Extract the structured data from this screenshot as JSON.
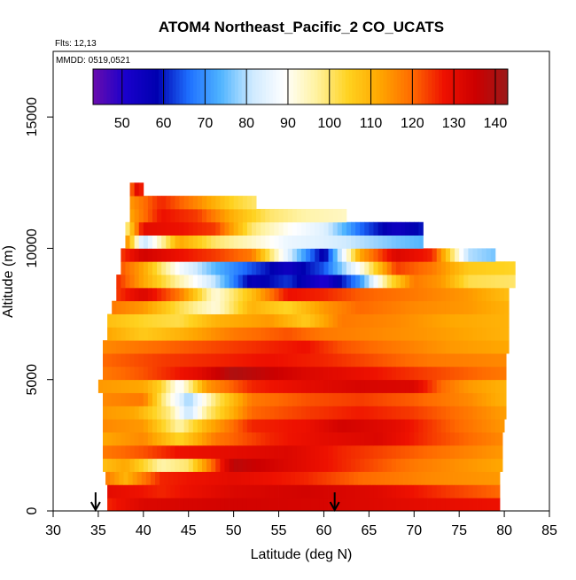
{
  "chart_data": {
    "type": "heatmap",
    "title": "ATOM4 Northeast_Pacific_2 CO_UCATS",
    "flights_note": "Flts: 12,13",
    "date_note": "MMDD: 0519,0521",
    "xlabel": "Latitude (deg N)",
    "ylabel": "Altitude (m)",
    "xlim": [
      30,
      85
    ],
    "ylim": [
      0,
      17500
    ],
    "x_ticks": [
      30,
      35,
      40,
      45,
      50,
      55,
      60,
      65,
      70,
      75,
      80,
      85
    ],
    "y_ticks": [
      0,
      5000,
      10000,
      15000
    ],
    "grid": false,
    "colorbar": {
      "placement": "top",
      "range": [
        43,
        143
      ],
      "ticks": [
        50,
        60,
        70,
        80,
        90,
        100,
        110,
        120,
        130,
        140
      ],
      "colors": [
        "#6a0dad",
        "#1a00cc",
        "#0000b0",
        "#1e6fff",
        "#4fb4ff",
        "#cfeaff",
        "#ffffff",
        "#fff2a0",
        "#ffd21f",
        "#ffa600",
        "#ff6a00",
        "#ee1100",
        "#cc0000",
        "#9a1a1a"
      ]
    },
    "markers": [
      {
        "label": "down-arrow",
        "latitude": 34.7
      },
      {
        "label": "down-arrow",
        "latitude": 61.2
      }
    ],
    "cell_height": 500,
    "rows": [
      {
        "alt": 250,
        "lat_min": 36.0,
        "lat_max": 79.5,
        "profile": [
          [
            36,
            126
          ],
          [
            40,
            132
          ],
          [
            50,
            134
          ],
          [
            60,
            133
          ],
          [
            70,
            130
          ],
          [
            79.5,
            128
          ]
        ]
      },
      {
        "alt": 750,
        "lat_min": 36.0,
        "lat_max": 79.5,
        "profile": [
          [
            36,
            130
          ],
          [
            42,
            126
          ],
          [
            50,
            132
          ],
          [
            58,
            134
          ],
          [
            66,
            131
          ],
          [
            74,
            124
          ],
          [
            79.5,
            120
          ]
        ]
      },
      {
        "alt": 1250,
        "lat_min": 35.8,
        "lat_max": 79.5,
        "profile": [
          [
            35.8,
            118
          ],
          [
            38,
            110
          ],
          [
            42,
            126
          ],
          [
            50,
            130
          ],
          [
            58,
            126
          ],
          [
            64,
            120
          ],
          [
            72,
            116
          ],
          [
            79.5,
            114
          ]
        ]
      },
      {
        "alt": 1750,
        "lat_min": 35.5,
        "lat_max": 79.8,
        "profile": [
          [
            35.5,
            108
          ],
          [
            38,
            112
          ],
          [
            42,
            96
          ],
          [
            45,
            100
          ],
          [
            50,
            138
          ],
          [
            56,
            132
          ],
          [
            62,
            126
          ],
          [
            70,
            118
          ],
          [
            79.8,
            112
          ]
        ]
      },
      {
        "alt": 2250,
        "lat_min": 35.5,
        "lat_max": 79.8,
        "profile": [
          [
            35.5,
            118
          ],
          [
            40,
            122
          ],
          [
            44,
            128
          ],
          [
            50,
            130
          ],
          [
            56,
            132
          ],
          [
            62,
            126
          ],
          [
            70,
            121
          ],
          [
            79.8,
            114
          ]
        ]
      },
      {
        "alt": 2750,
        "lat_min": 35.5,
        "lat_max": 79.8,
        "profile": [
          [
            35.5,
            112
          ],
          [
            40,
            116
          ],
          [
            44,
            104
          ],
          [
            48,
            118
          ],
          [
            54,
            126
          ],
          [
            60,
            130
          ],
          [
            66,
            132
          ],
          [
            72,
            124
          ],
          [
            79.8,
            116
          ]
        ]
      },
      {
        "alt": 3250,
        "lat_min": 35.5,
        "lat_max": 80.0,
        "profile": [
          [
            35.5,
            116
          ],
          [
            40,
            114
          ],
          [
            44,
            96
          ],
          [
            47,
            110
          ],
          [
            52,
            126
          ],
          [
            58,
            128
          ],
          [
            62,
            134
          ],
          [
            68,
            130
          ],
          [
            74,
            121
          ],
          [
            80,
            114
          ]
        ]
      },
      {
        "alt": 3750,
        "lat_min": 35.5,
        "lat_max": 80.2,
        "profile": [
          [
            35.5,
            114
          ],
          [
            39,
            112
          ],
          [
            43,
            98
          ],
          [
            45,
            80
          ],
          [
            47,
            98
          ],
          [
            52,
            120
          ],
          [
            58,
            124
          ],
          [
            64,
            127
          ],
          [
            70,
            124
          ],
          [
            76,
            118
          ],
          [
            80.2,
            113
          ]
        ]
      },
      {
        "alt": 4250,
        "lat_min": 35.5,
        "lat_max": 80.2,
        "profile": [
          [
            35.5,
            116
          ],
          [
            40,
            118
          ],
          [
            43,
            92
          ],
          [
            45,
            78
          ],
          [
            48,
            100
          ],
          [
            52,
            118
          ],
          [
            58,
            122
          ],
          [
            64,
            124
          ],
          [
            70,
            121
          ],
          [
            76,
            116
          ],
          [
            80.2,
            110
          ]
        ]
      },
      {
        "alt": 4750,
        "lat_min": 35.0,
        "lat_max": 80.2,
        "profile": [
          [
            35,
            114
          ],
          [
            40,
            112
          ],
          [
            42,
            104
          ],
          [
            44,
            88
          ],
          [
            47,
            114
          ],
          [
            52,
            126
          ],
          [
            58,
            130
          ],
          [
            64,
            133
          ],
          [
            70,
            132
          ],
          [
            73,
            120
          ],
          [
            76,
            114
          ],
          [
            80.2,
            110
          ]
        ]
      },
      {
        "alt": 5250,
        "lat_min": 35.5,
        "lat_max": 80.2,
        "profile": [
          [
            35.5,
            118
          ],
          [
            40,
            122
          ],
          [
            46,
            130
          ],
          [
            50,
            140
          ],
          [
            54,
            136
          ],
          [
            58,
            132
          ],
          [
            62,
            130
          ],
          [
            68,
            126
          ],
          [
            74,
            122
          ],
          [
            80.2,
            118
          ]
        ]
      },
      {
        "alt": 5750,
        "lat_min": 35.5,
        "lat_max": 80.2,
        "profile": [
          [
            35.5,
            120
          ],
          [
            42,
            124
          ],
          [
            48,
            126
          ],
          [
            54,
            128
          ],
          [
            60,
            126
          ],
          [
            66,
            122
          ],
          [
            72,
            118
          ],
          [
            80.2,
            116
          ]
        ]
      },
      {
        "alt": 6250,
        "lat_min": 35.5,
        "lat_max": 80.5,
        "profile": [
          [
            35.5,
            116
          ],
          [
            42,
            120
          ],
          [
            50,
            124
          ],
          [
            58,
            128
          ],
          [
            62,
            122
          ],
          [
            68,
            118
          ],
          [
            74,
            114
          ],
          [
            80.5,
            112
          ]
        ]
      },
      {
        "alt": 6750,
        "lat_min": 36.0,
        "lat_max": 80.5,
        "profile": [
          [
            36,
            112
          ],
          [
            40,
            106
          ],
          [
            44,
            110
          ],
          [
            50,
            118
          ],
          [
            56,
            122
          ],
          [
            60,
            118
          ],
          [
            66,
            116
          ],
          [
            72,
            114
          ],
          [
            80.5,
            110
          ]
        ]
      },
      {
        "alt": 7250,
        "lat_min": 36.0,
        "lat_max": 80.5,
        "profile": [
          [
            36,
            108
          ],
          [
            40,
            104
          ],
          [
            44,
            102
          ],
          [
            48,
            110
          ],
          [
            54,
            114
          ],
          [
            58,
            106
          ],
          [
            62,
            118
          ],
          [
            68,
            116
          ],
          [
            74,
            112
          ],
          [
            80.5,
            110
          ]
        ]
      },
      {
        "alt": 7750,
        "lat_min": 36.5,
        "lat_max": 80.5,
        "profile": [
          [
            36.5,
            118
          ],
          [
            40,
            114
          ],
          [
            44,
            102
          ],
          [
            48,
            92
          ],
          [
            52,
            110
          ],
          [
            56,
            104
          ],
          [
            60,
            114
          ],
          [
            64,
            120
          ],
          [
            70,
            116
          ],
          [
            76,
            114
          ],
          [
            80.5,
            110
          ]
        ]
      },
      {
        "alt": 8250,
        "lat_min": 37.0,
        "lat_max": 80.5,
        "profile": [
          [
            37,
            124
          ],
          [
            40,
            132
          ],
          [
            44,
            118
          ],
          [
            48,
            92
          ],
          [
            52,
            108
          ],
          [
            56,
            128
          ],
          [
            60,
            126
          ],
          [
            64,
            121
          ],
          [
            70,
            118
          ],
          [
            76,
            114
          ],
          [
            80.5,
            108
          ]
        ]
      },
      {
        "alt": 8750,
        "lat_min": 37.0,
        "lat_max": 81.2,
        "profile": [
          [
            37,
            126
          ],
          [
            40,
            112
          ],
          [
            44,
            96
          ],
          [
            48,
            80
          ],
          [
            52,
            56
          ],
          [
            56,
            62
          ],
          [
            60,
            50
          ],
          [
            64,
            70
          ],
          [
            67,
            100
          ],
          [
            70,
            118
          ],
          [
            73,
            114
          ],
          [
            76,
            102
          ],
          [
            81.2,
            100
          ]
        ]
      },
      {
        "alt": 9250,
        "lat_min": 37.5,
        "lat_max": 81.2,
        "profile": [
          [
            37.5,
            122
          ],
          [
            40,
            112
          ],
          [
            44,
            88
          ],
          [
            48,
            74
          ],
          [
            52,
            64
          ],
          [
            56,
            54
          ],
          [
            60,
            64
          ],
          [
            64,
            90
          ],
          [
            68,
            124
          ],
          [
            72,
            118
          ],
          [
            76,
            106
          ],
          [
            81.2,
            104
          ]
        ]
      },
      {
        "alt": 9750,
        "lat_min": 37.5,
        "lat_max": 79.0,
        "profile": [
          [
            37.5,
            124
          ],
          [
            40,
            134
          ],
          [
            44,
            128
          ],
          [
            48,
            124
          ],
          [
            52,
            118
          ],
          [
            56,
            84
          ],
          [
            60,
            56
          ],
          [
            64,
            112
          ],
          [
            68,
            132
          ],
          [
            72,
            126
          ],
          [
            76,
            80
          ],
          [
            79,
            76
          ]
        ]
      },
      {
        "alt": 10250,
        "lat_min": 38.0,
        "lat_max": 71.0,
        "profile": [
          [
            38,
            118
          ],
          [
            40,
            80
          ],
          [
            44,
            112
          ],
          [
            48,
            100
          ],
          [
            52,
            94
          ],
          [
            56,
            86
          ],
          [
            60,
            84
          ],
          [
            64,
            80
          ],
          [
            68,
            76
          ],
          [
            71,
            74
          ]
        ]
      },
      {
        "alt": 10750,
        "lat_min": 38.0,
        "lat_max": 71.0,
        "profile": [
          [
            38,
            96
          ],
          [
            40,
            130
          ],
          [
            44,
            128
          ],
          [
            48,
            124
          ],
          [
            52,
            100
          ],
          [
            56,
            90
          ],
          [
            60,
            84
          ],
          [
            64,
            66
          ],
          [
            68,
            54
          ],
          [
            71,
            60
          ]
        ]
      },
      {
        "alt": 11250,
        "lat_min": 38.5,
        "lat_max": 62.5,
        "profile": [
          [
            38.5,
            112
          ],
          [
            42,
            128
          ],
          [
            46,
            124
          ],
          [
            50,
            110
          ],
          [
            54,
            100
          ],
          [
            58,
            96
          ],
          [
            62.5,
            94
          ]
        ]
      },
      {
        "alt": 11750,
        "lat_min": 38.5,
        "lat_max": 52.5,
        "profile": [
          [
            38.5,
            114
          ],
          [
            42,
            126
          ],
          [
            46,
            116
          ],
          [
            50,
            104
          ],
          [
            52.5,
            100
          ]
        ]
      },
      {
        "alt": 12250,
        "lat_min": 38.5,
        "lat_max": 40.0,
        "profile": [
          [
            38.5,
            118
          ],
          [
            39.5,
            134
          ],
          [
            40,
            120
          ]
        ]
      }
    ]
  }
}
